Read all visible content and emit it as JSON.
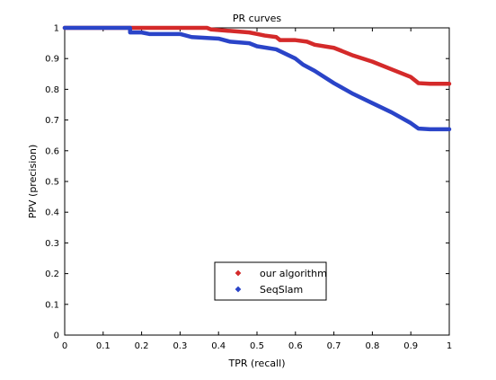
{
  "chart_data": {
    "type": "line",
    "title": "PR curves",
    "xlabel": "TPR (recall)",
    "ylabel": "PPV (precision)",
    "xlim": [
      0,
      1
    ],
    "ylim": [
      0,
      1
    ],
    "xticks": [
      0,
      0.1,
      0.2,
      0.3,
      0.4,
      0.5,
      0.6,
      0.7,
      0.8,
      0.9,
      1
    ],
    "yticks": [
      0,
      0.1,
      0.2,
      0.3,
      0.4,
      0.5,
      0.6,
      0.7,
      0.8,
      0.9,
      1
    ],
    "xtick_labels": [
      "0",
      "0.1",
      "0.2",
      "0.3",
      "0.4",
      "0.5",
      "0.6",
      "0.7",
      "0.8",
      "0.9",
      "1"
    ],
    "ytick_labels": [
      "0",
      "0.1",
      "0.2",
      "0.3",
      "0.4",
      "0.5",
      "0.6",
      "0.7",
      "0.8",
      "0.9",
      "1"
    ],
    "grid": false,
    "legend_position": "bottom-center",
    "series": [
      {
        "name": "our algorithm",
        "color": "#d42a2a",
        "marker": "diamond",
        "points": [
          [
            0.0,
            1.0
          ],
          [
            0.1,
            1.0
          ],
          [
            0.2,
            1.0
          ],
          [
            0.3,
            1.0
          ],
          [
            0.37,
            1.0
          ],
          [
            0.38,
            0.995
          ],
          [
            0.43,
            0.99
          ],
          [
            0.48,
            0.985
          ],
          [
            0.5,
            0.98
          ],
          [
            0.52,
            0.975
          ],
          [
            0.55,
            0.97
          ],
          [
            0.56,
            0.96
          ],
          [
            0.6,
            0.96
          ],
          [
            0.63,
            0.955
          ],
          [
            0.65,
            0.945
          ],
          [
            0.7,
            0.935
          ],
          [
            0.72,
            0.925
          ],
          [
            0.75,
            0.91
          ],
          [
            0.8,
            0.89
          ],
          [
            0.85,
            0.865
          ],
          [
            0.9,
            0.84
          ],
          [
            0.92,
            0.82
          ],
          [
            0.95,
            0.818
          ],
          [
            1.0,
            0.818
          ]
        ]
      },
      {
        "name": "SeqSlam",
        "color": "#2a44c8",
        "marker": "diamond",
        "points": [
          [
            0.0,
            1.0
          ],
          [
            0.1,
            1.0
          ],
          [
            0.17,
            1.0
          ],
          [
            0.17,
            0.985
          ],
          [
            0.2,
            0.985
          ],
          [
            0.22,
            0.98
          ],
          [
            0.3,
            0.98
          ],
          [
            0.33,
            0.97
          ],
          [
            0.4,
            0.965
          ],
          [
            0.43,
            0.955
          ],
          [
            0.48,
            0.95
          ],
          [
            0.5,
            0.94
          ],
          [
            0.55,
            0.93
          ],
          [
            0.6,
            0.9
          ],
          [
            0.62,
            0.88
          ],
          [
            0.65,
            0.86
          ],
          [
            0.7,
            0.82
          ],
          [
            0.75,
            0.785
          ],
          [
            0.8,
            0.755
          ],
          [
            0.85,
            0.725
          ],
          [
            0.9,
            0.69
          ],
          [
            0.92,
            0.672
          ],
          [
            0.95,
            0.67
          ],
          [
            1.0,
            0.67
          ]
        ]
      }
    ]
  }
}
